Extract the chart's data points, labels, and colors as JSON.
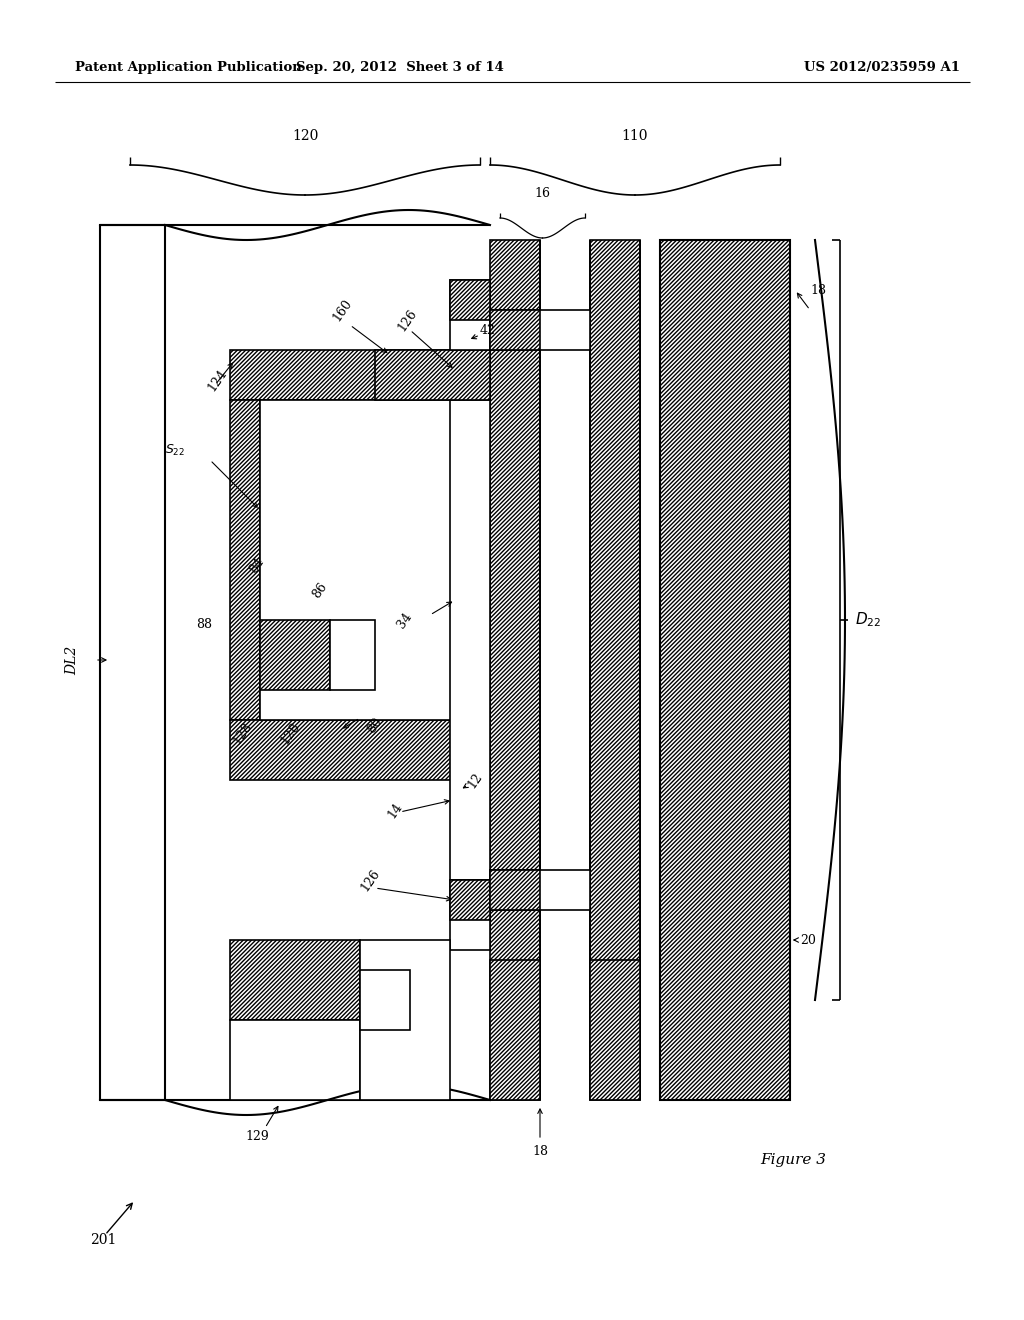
{
  "header_left": "Patent Application Publication",
  "header_mid": "Sep. 20, 2012  Sheet 3 of 14",
  "header_right": "US 2012/0235959 A1",
  "figure_label": "Figure 3",
  "figure_number": "201",
  "bg_color": "#ffffff",
  "line_color": "#000000"
}
